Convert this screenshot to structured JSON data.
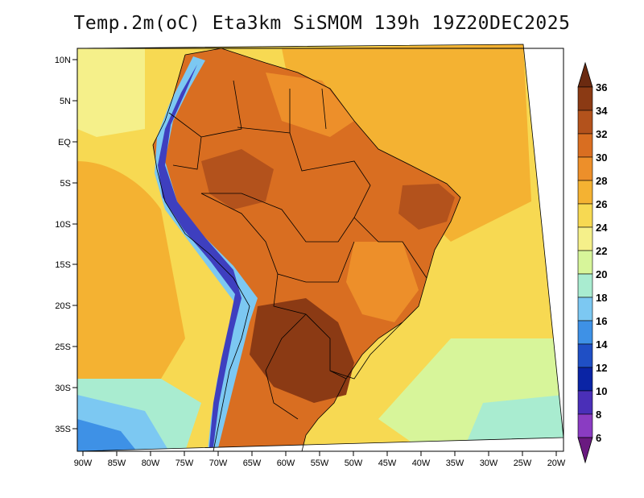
{
  "title": "Temp.2m(oC) Eta3km SiSMOM 139h 19Z20DEC2025",
  "map": {
    "lat_labels": [
      "10N",
      "5N",
      "EQ",
      "5S",
      "10S",
      "15S",
      "20S",
      "25S",
      "30S",
      "35S"
    ],
    "lon_labels": [
      "90W",
      "85W",
      "80W",
      "75W",
      "70W",
      "65W",
      "60W",
      "55W",
      "50W",
      "45W",
      "40W",
      "35W",
      "30W",
      "25W",
      "20W"
    ]
  },
  "colorbar": {
    "labels": [
      "36",
      "34",
      "32",
      "30",
      "28",
      "26",
      "24",
      "22",
      "20",
      "18",
      "16",
      "14",
      "12",
      "10",
      "8",
      "6"
    ],
    "colors": [
      "#6b2a10",
      "#8b3a14",
      "#b3521c",
      "#d96e21",
      "#ed8f2a",
      "#f4b232",
      "#f7d952",
      "#f5f08a",
      "#d7f59a",
      "#a9ecd0",
      "#7cc8f2",
      "#3e91e6",
      "#1f4fc5",
      "#0a24a5",
      "#4a2fb8",
      "#8a3cc2",
      "#6a1a80"
    ]
  },
  "palette": {
    "ocean_warm": "#f6e27a",
    "ocean_cool": "#f2d066",
    "land_hot": "#8b3a14",
    "andes": "#3e3fbf",
    "border": "#000000"
  }
}
